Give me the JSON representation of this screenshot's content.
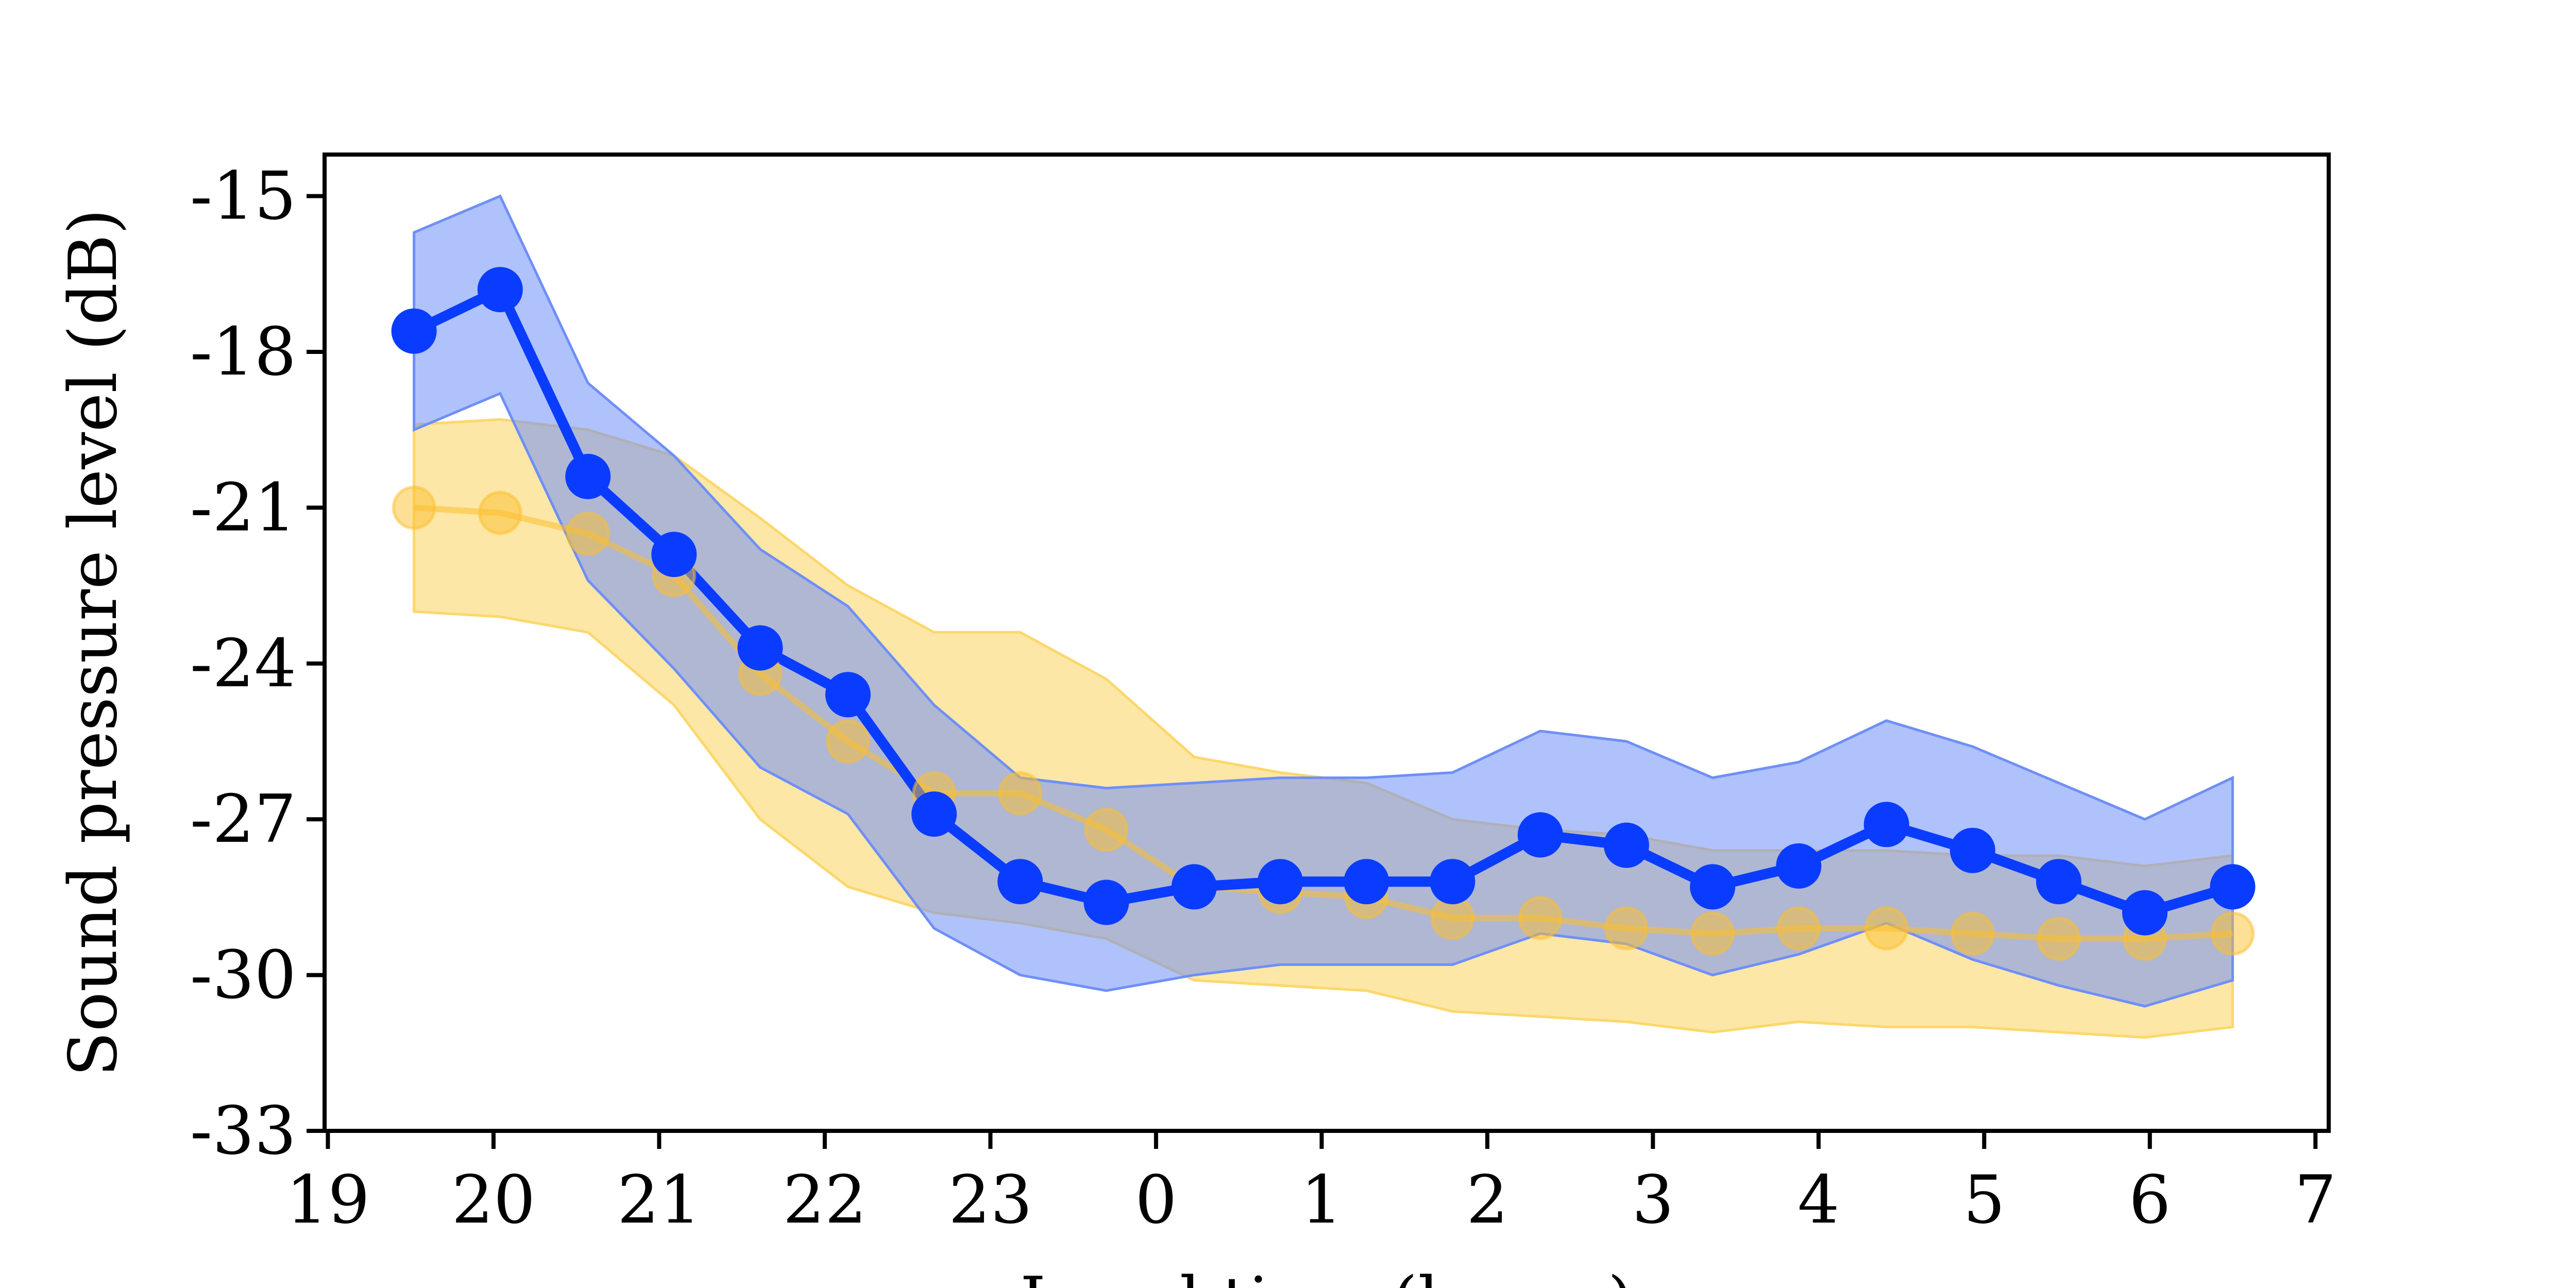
{
  "chart_data": {
    "type": "line",
    "title": "",
    "xlabel": "Local time (hours)",
    "ylabel": "Sound pressure level (dB)",
    "xlim": [
      18.98,
      31.08
    ],
    "ylim": [
      -33,
      -14.2
    ],
    "x_ticks": [
      19,
      20,
      21,
      22,
      23,
      24,
      25,
      26,
      27,
      28,
      29,
      30,
      31
    ],
    "x_tick_labels": [
      "19",
      "20",
      "21",
      "22",
      "23",
      "0",
      "1",
      "2",
      "3",
      "4",
      "5",
      "6",
      "7"
    ],
    "y_ticks": [
      -33,
      -30,
      -27,
      -24,
      -21,
      -18,
      -15
    ],
    "y_tick_labels": [
      "-33",
      "-30",
      "-27",
      "-24",
      "-21",
      "-18",
      "-15"
    ],
    "grid": false,
    "legend": "none",
    "x": [
      19.52,
      20.04,
      20.57,
      21.09,
      21.61,
      22.14,
      22.66,
      23.18,
      23.7,
      24.23,
      24.75,
      25.27,
      25.79,
      26.32,
      26.84,
      27.36,
      27.88,
      28.41,
      28.93,
      29.45,
      29.97,
      30.5
    ],
    "series": [
      {
        "color": "#0a3cff",
        "fill_color": "#6f8ff7",
        "values": [
          -17.6,
          -16.8,
          -20.4,
          -21.9,
          -23.7,
          -24.6,
          -26.9,
          -28.2,
          -28.6,
          -28.3,
          -28.2,
          -28.2,
          -28.2,
          -27.3,
          -27.5,
          -28.3,
          -27.9,
          -27.1,
          -27.6,
          -28.2,
          -28.8,
          -28.3
        ],
        "band_upper": [
          -15.7,
          -15.0,
          -18.6,
          -20.0,
          -21.8,
          -22.9,
          -24.8,
          -26.2,
          -26.4,
          -26.3,
          -26.2,
          -26.2,
          -26.1,
          -25.3,
          -25.5,
          -26.2,
          -25.9,
          -25.1,
          -25.6,
          -26.3,
          -27.0,
          -26.2
        ],
        "band_lower": [
          -19.5,
          -18.8,
          -22.4,
          -24.1,
          -26.0,
          -26.9,
          -29.1,
          -30.0,
          -30.3,
          -30.0,
          -29.8,
          -29.8,
          -29.8,
          -29.2,
          -29.4,
          -30.0,
          -29.6,
          -29.0,
          -29.7,
          -30.2,
          -30.6,
          -30.1
        ]
      },
      {
        "color": "#fbc02d",
        "fill_color": "#fcd76b",
        "values": [
          -21.0,
          -21.1,
          -21.5,
          -22.3,
          -24.2,
          -25.5,
          -26.5,
          -26.5,
          -27.2,
          -28.3,
          -28.4,
          -28.5,
          -28.9,
          -28.9,
          -29.1,
          -29.2,
          -29.1,
          -29.1,
          -29.2,
          -29.3,
          -29.3,
          -29.2
        ],
        "band_upper": [
          -19.4,
          -19.3,
          -19.5,
          -20.0,
          -21.2,
          -22.5,
          -23.4,
          -23.4,
          -24.3,
          -25.8,
          -26.1,
          -26.3,
          -27.0,
          -27.2,
          -27.3,
          -27.6,
          -27.6,
          -27.6,
          -27.7,
          -27.7,
          -27.9,
          -27.7
        ],
        "band_lower": [
          -23.0,
          -23.1,
          -23.4,
          -24.8,
          -27.0,
          -28.3,
          -28.8,
          -29.0,
          -29.3,
          -30.1,
          -30.2,
          -30.3,
          -30.7,
          -30.8,
          -30.9,
          -31.1,
          -30.9,
          -31.0,
          -31.0,
          -31.1,
          -31.2,
          -31.0
        ]
      }
    ]
  }
}
